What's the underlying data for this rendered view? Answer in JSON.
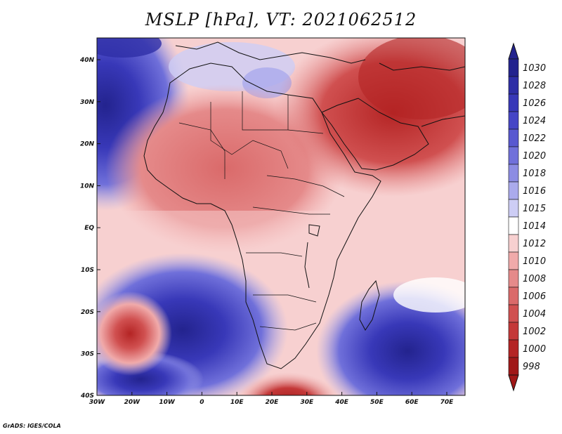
{
  "title": "MSLP [hPa], VT: 2021062512",
  "credit": "GrADS: IGES/COLA",
  "axes": {
    "lon_labels": [
      "30W",
      "20W",
      "10W",
      "0",
      "10E",
      "20E",
      "30E",
      "40E",
      "50E",
      "60E",
      "70E"
    ],
    "lat_labels": [
      "40N",
      "30N",
      "20N",
      "10N",
      "EQ",
      "10S",
      "20S",
      "30S",
      "40S"
    ]
  },
  "colorbar": {
    "levels": [
      "1030",
      "1028",
      "1026",
      "1024",
      "1022",
      "1020",
      "1018",
      "1016",
      "1015",
      "1014",
      "1012",
      "1010",
      "1008",
      "1006",
      "1004",
      "1002",
      "1000",
      "998"
    ],
    "colors": [
      "#23238e",
      "#2e2ea6",
      "#3838b8",
      "#4545c6",
      "#5858d0",
      "#7070da",
      "#8c8ce3",
      "#aaaaec",
      "#cdcdf5",
      "#ffffff",
      "#f7d0d0",
      "#f0aaaa",
      "#e58a8a",
      "#da6a6a",
      "#d05050",
      "#c43838",
      "#b42424",
      "#a01818"
    ],
    "top_arrow_color": "#23238e",
    "bottom_arrow_color": "#a01818"
  },
  "colors": {
    "ocean_low": "#a01818",
    "ocean_high": "#23238e",
    "neutral": "#ffffff"
  }
}
